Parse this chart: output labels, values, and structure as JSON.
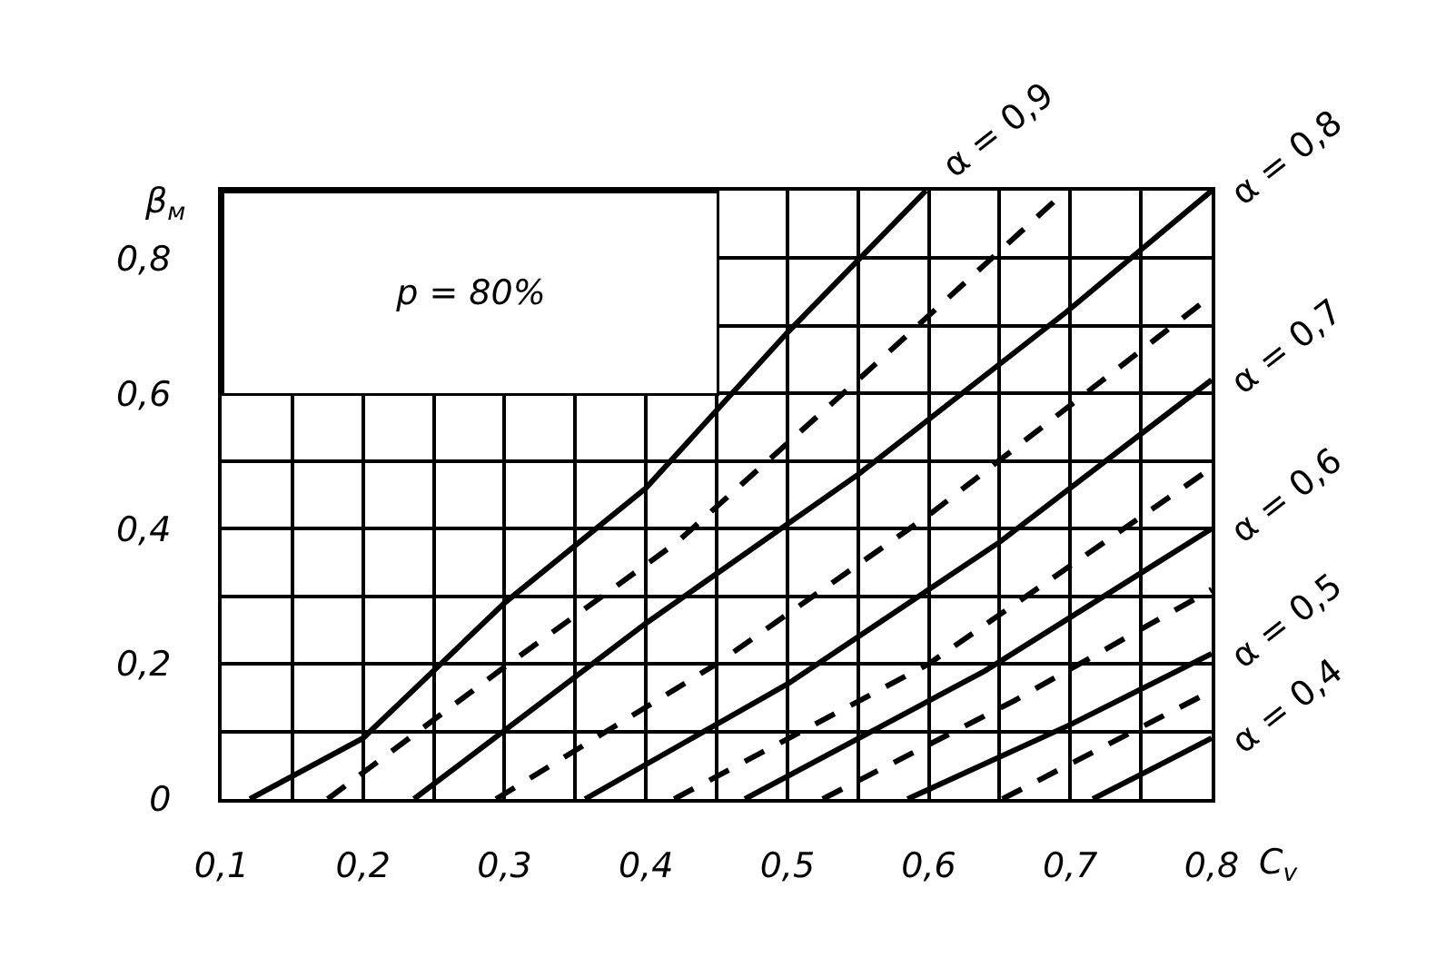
{
  "chart_data": {
    "type": "line",
    "xlabel": "C$_{v}$",
    "ylabel": "β$_{м}$",
    "annotations": [
      "p = 80%"
    ],
    "xlim": [
      0.1,
      0.8
    ],
    "ylim": [
      0,
      0.9
    ],
    "xticks": [
      {
        "value": 0.1,
        "label": "0,1"
      },
      {
        "value": 0.15,
        "label": null
      },
      {
        "value": 0.2,
        "label": "0,2"
      },
      {
        "value": 0.25,
        "label": null
      },
      {
        "value": 0.3,
        "label": "0,3"
      },
      {
        "value": 0.35,
        "label": null
      },
      {
        "value": 0.4,
        "label": "0,4"
      },
      {
        "value": 0.45,
        "label": null
      },
      {
        "value": 0.5,
        "label": "0,5"
      },
      {
        "value": 0.55,
        "label": null
      },
      {
        "value": 0.6,
        "label": "0,6"
      },
      {
        "value": 0.65,
        "label": null
      },
      {
        "value": 0.7,
        "label": "0,7"
      },
      {
        "value": 0.75,
        "label": null
      },
      {
        "value": 0.8,
        "label": "0,8"
      }
    ],
    "yticks": [
      0,
      {
        "value": 0.1,
        "label": null
      },
      {
        "value": 0.2,
        "label": "0,2"
      },
      {
        "value": 0.3,
        "label": null
      },
      {
        "value": 0.4,
        "label": "0,4"
      },
      {
        "value": 0.5,
        "label": null
      },
      {
        "value": 0.6,
        "label": "0,6"
      },
      {
        "value": 0.7,
        "label": null
      },
      {
        "value": 0.8,
        "label": "0,8"
      },
      {
        "value": 0.9,
        "label": null
      }
    ],
    "grid": true,
    "marker": "none",
    "series": [
      {
        "name": "α = 0,9",
        "color": "#000000",
        "line_style": "solid",
        "x": [
          0.12,
          0.2,
          0.3,
          0.4,
          0.5,
          0.598
        ],
        "values": [
          0,
          0.09,
          0.29,
          0.46,
          0.69,
          0.9
        ]
      },
      {
        "color": "#000000",
        "line_style": "dashed",
        "x": [
          0.175,
          0.303,
          0.422,
          0.55,
          0.697
        ],
        "values": [
          0,
          0.2,
          0.38,
          0.62,
          0.9
        ]
      },
      {
        "name": "α = 0,8",
        "color": "#000000",
        "line_style": "solid",
        "x": [
          0.236,
          0.4,
          0.55,
          0.697,
          0.8
        ],
        "values": [
          0,
          0.26,
          0.48,
          0.72,
          0.9
        ]
      },
      {
        "color": "#000000",
        "line_style": "dashed",
        "x": [
          0.294,
          0.45,
          0.6,
          0.8
        ],
        "values": [
          0,
          0.2,
          0.42,
          0.745
        ]
      },
      {
        "name": "α = 0,7",
        "color": "#000000",
        "line_style": "solid",
        "x": [
          0.357,
          0.5,
          0.65,
          0.8
        ],
        "values": [
          0,
          0.17,
          0.38,
          0.62
        ]
      },
      {
        "color": "#000000",
        "line_style": "dashed",
        "x": [
          0.42,
          0.6,
          0.8
        ],
        "values": [
          0,
          0.2,
          0.49
        ]
      },
      {
        "name": "α = 0,6",
        "color": "#000000",
        "line_style": "solid",
        "x": [
          0.47,
          0.64,
          0.8
        ],
        "values": [
          0,
          0.19,
          0.4
        ]
      },
      {
        "color": "#000000",
        "line_style": "dashed",
        "x": [
          0.525,
          0.66,
          0.8
        ],
        "values": [
          0,
          0.145,
          0.31
        ]
      },
      {
        "name": "α = 0,5",
        "color": "#000000",
        "line_style": "solid",
        "x": [
          0.585,
          0.7,
          0.8
        ],
        "values": [
          0,
          0.11,
          0.215
        ]
      },
      {
        "color": "#000000",
        "line_style": "dashed",
        "x": [
          0.652,
          0.8
        ],
        "values": [
          0,
          0.16
        ]
      },
      {
        "name": "α = 0,4",
        "color": "#000000",
        "line_style": "solid",
        "x": [
          0.716,
          0.8
        ],
        "values": [
          0,
          0.09
        ]
      }
    ]
  }
}
